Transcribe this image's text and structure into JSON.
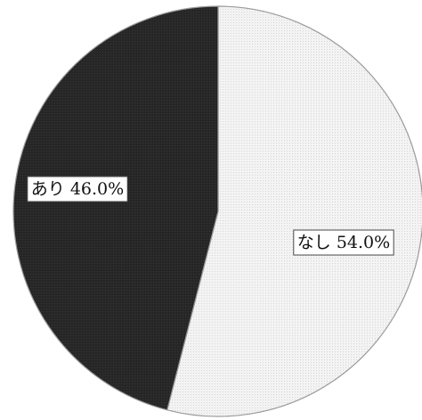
{
  "chart_data": {
    "type": "pie",
    "title": "",
    "series": [
      {
        "values": [
          54.0,
          46.0
        ]
      }
    ],
    "categories": [
      "なし",
      "あり"
    ],
    "labels": [
      "なし 54.0%",
      "あり 46.0%"
    ],
    "colors": [
      "#f1f1f1",
      "#262626"
    ],
    "edge_color": "#9a9a9a",
    "start_angle_deg": 0,
    "direction": "clockwise",
    "legend": "none"
  }
}
